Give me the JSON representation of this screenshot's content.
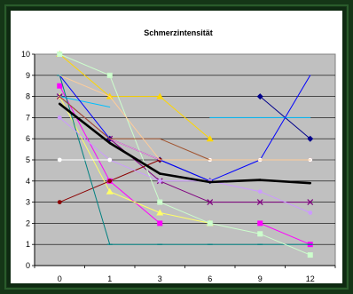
{
  "chart_data": {
    "type": "line",
    "title": "Schmerzintensität",
    "x": [
      0,
      1,
      3,
      6,
      9,
      12
    ],
    "x_tick_labels": [
      "0",
      "1",
      "3",
      "6",
      "9",
      "12"
    ],
    "ylim": [
      0,
      10
    ],
    "y_tick_labels": [
      "0",
      "1",
      "2",
      "3",
      "4",
      "5",
      "6",
      "7",
      "8",
      "9",
      "10"
    ],
    "grid": "horizontal",
    "legend": "none",
    "series": [
      {
        "color": "#000000",
        "width": 2.6,
        "marker": "none",
        "values": [
          7.65,
          5.8,
          4.35,
          3.95,
          4.05,
          3.9
        ]
      },
      {
        "color": "#00008B",
        "width": 1,
        "marker": "diamond",
        "values": [
          8,
          6,
          5,
          4,
          8,
          6
        ],
        "gaps": [
          3
        ]
      },
      {
        "color": "#FFD700",
        "width": 1,
        "marker": "triangle",
        "values": [
          10,
          8,
          8,
          6,
          null,
          null
        ]
      },
      {
        "color": "#FF00FF",
        "width": 1,
        "marker": "square",
        "values": [
          8.5,
          4,
          2,
          null,
          2,
          1
        ],
        "gaps": [
          2
        ]
      },
      {
        "color": "#FFFF66",
        "width": 1,
        "marker": "triangle",
        "values": [
          8,
          3.5,
          2.5,
          2,
          null,
          null
        ]
      },
      {
        "color": "#00BFFF",
        "width": 1,
        "marker": "none",
        "values": [
          8,
          7.5,
          null,
          7,
          7,
          7
        ],
        "gaps": [
          2
        ]
      },
      {
        "color": "#800080",
        "width": 1,
        "marker": "x",
        "values": [
          8,
          6,
          4,
          3,
          3,
          3
        ]
      },
      {
        "color": "#8B0000",
        "width": 1,
        "marker": "dot",
        "values": [
          3,
          4,
          5,
          5,
          5,
          5
        ]
      },
      {
        "color": "#008080",
        "width": 1,
        "marker": "dash",
        "values": [
          9,
          1,
          1,
          1,
          1,
          1
        ]
      },
      {
        "color": "#CCFFCC",
        "width": 1,
        "marker": "square",
        "values": [
          10,
          9,
          3,
          2,
          1.5,
          0.5
        ]
      },
      {
        "color": "#0000FF",
        "width": 1,
        "marker": "none",
        "values": [
          9,
          6,
          5,
          4,
          5,
          9
        ]
      },
      {
        "color": "#CC99FF",
        "width": 1,
        "marker": "dot",
        "values": [
          7,
          5,
          4,
          4,
          3.5,
          2.5
        ]
      },
      {
        "color": "#FFFFFF",
        "width": 1,
        "marker": "dot",
        "values": [
          5,
          5,
          null,
          5,
          5,
          5
        ],
        "gaps": [
          2
        ]
      },
      {
        "color": "#FF99CC",
        "width": 1,
        "marker": "none",
        "values": [
          8,
          6,
          5,
          5,
          5,
          5
        ]
      },
      {
        "color": "#A0522D",
        "width": 1,
        "marker": "none",
        "values": [
          8,
          6,
          6,
          5,
          5,
          5
        ]
      },
      {
        "color": "#FFCC99",
        "width": 1,
        "marker": "none",
        "values": [
          9,
          8,
          5,
          5,
          5,
          5
        ]
      }
    ]
  }
}
